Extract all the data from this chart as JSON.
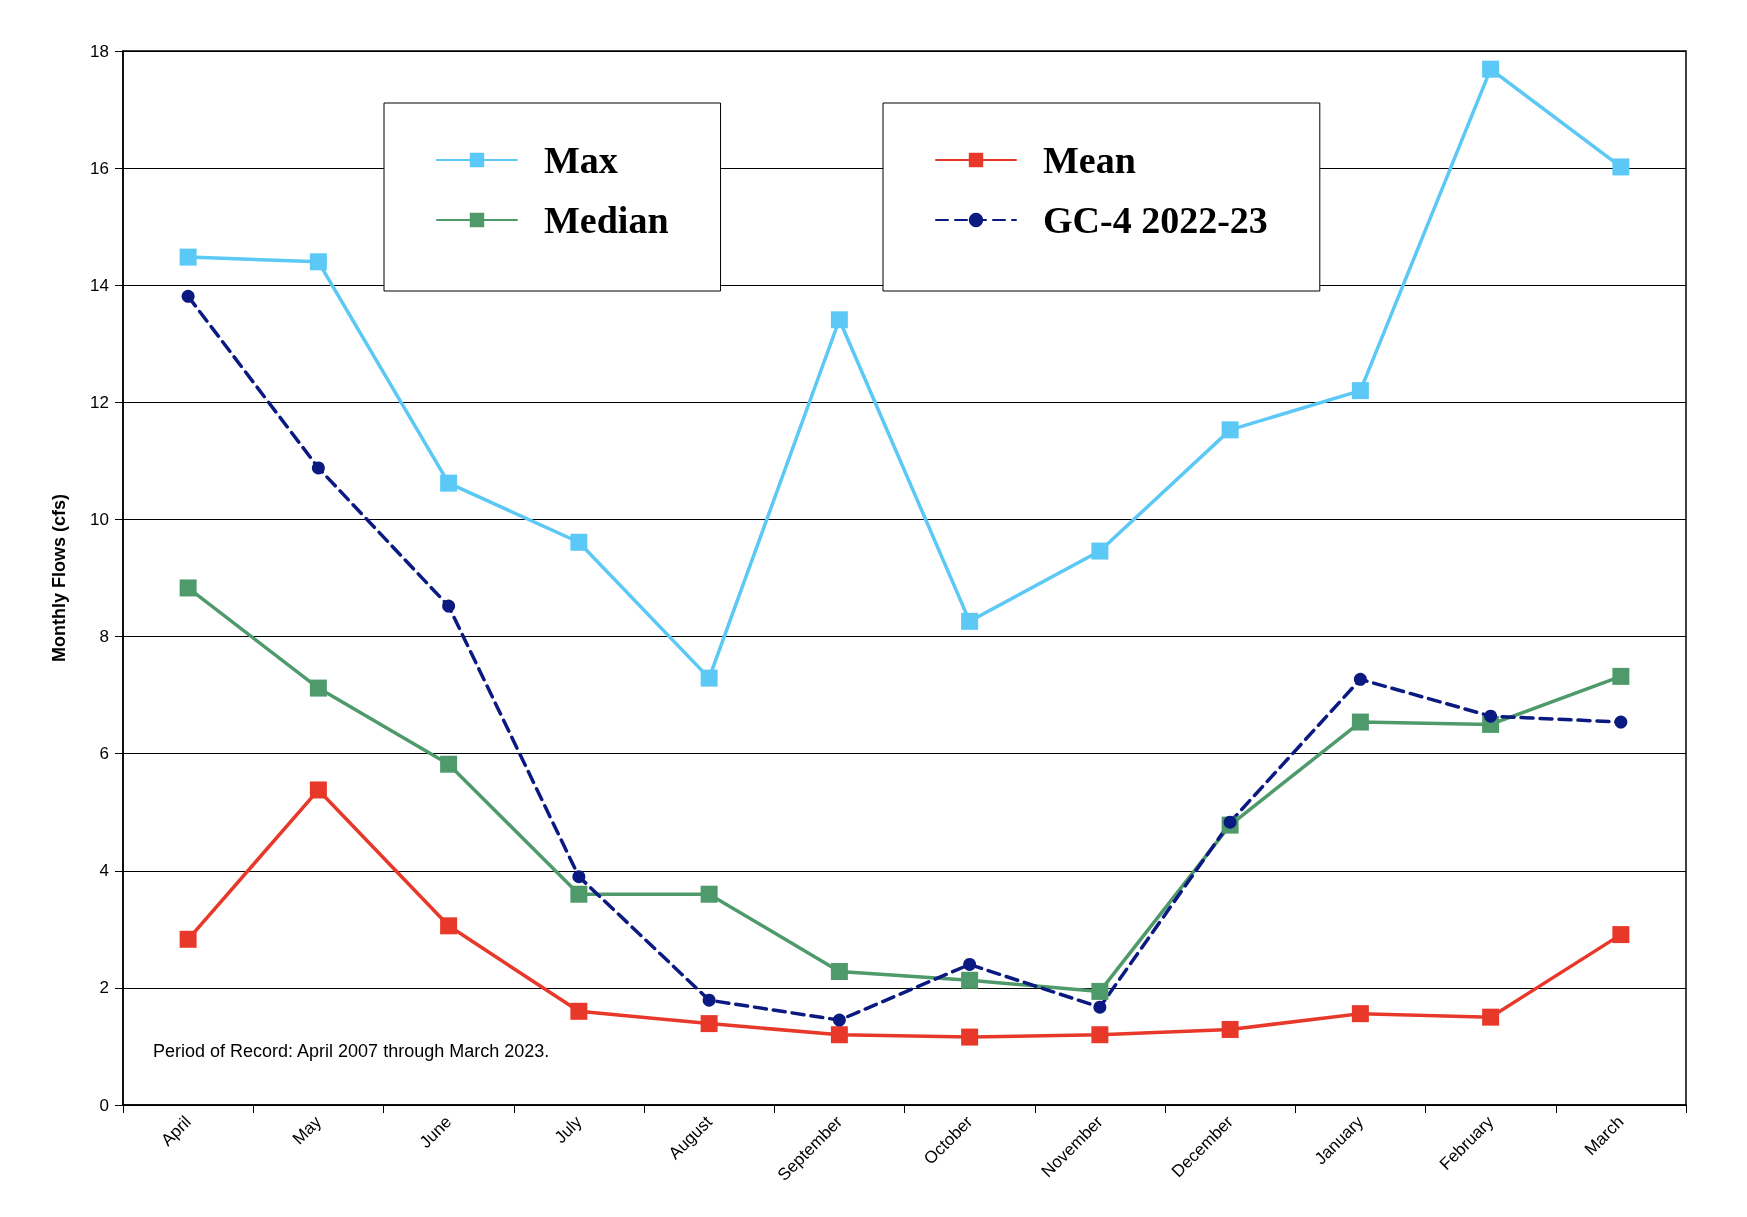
{
  "chart_data": {
    "type": "line",
    "ylabel": "Monthly Flows (cfs)",
    "categories": [
      "April",
      "May",
      "June",
      "July",
      "August",
      "September",
      "October",
      "November",
      "December",
      "January",
      "February",
      "March"
    ],
    "series": [
      {
        "name": "Max",
        "color": "#5bc8f5",
        "marker": "square",
        "line_style": "solid",
        "values": [
          14.48,
          14.4,
          10.62,
          9.61,
          7.29,
          13.41,
          8.26,
          9.46,
          11.53,
          12.2,
          17.69,
          16.02
        ]
      },
      {
        "name": "Median",
        "color": "#4e9a6a",
        "marker": "square",
        "line_style": "solid",
        "values": [
          8.83,
          7.12,
          5.82,
          3.6,
          3.6,
          2.28,
          2.13,
          1.94,
          4.78,
          6.54,
          6.5,
          7.32
        ]
      },
      {
        "name": "Mean",
        "color": "#e8382a",
        "marker": "square",
        "line_style": "solid",
        "values": [
          2.83,
          5.38,
          3.06,
          1.6,
          1.39,
          1.2,
          1.16,
          1.2,
          1.29,
          1.56,
          1.5,
          2.91
        ]
      },
      {
        "name": "GC-4 2022-23",
        "color": "#0a1a80",
        "marker": "circle",
        "line_style": "dashed",
        "values": [
          13.81,
          10.88,
          8.52,
          3.9,
          1.79,
          1.45,
          2.4,
          1.67,
          4.83,
          7.27,
          6.64,
          6.54
        ]
      }
    ],
    "ylim": [
      0,
      18
    ],
    "yticks": [
      0,
      2,
      4,
      6,
      8,
      10,
      12,
      14,
      16,
      18
    ],
    "grid": "y",
    "legend": "top",
    "annotations": [
      "Period of Record: April 2007 through March 2023."
    ]
  }
}
